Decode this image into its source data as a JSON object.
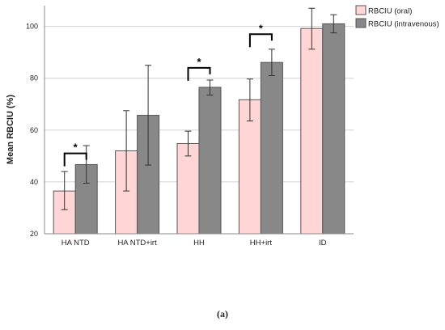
{
  "chart_data": {
    "type": "bar",
    "ylabel": "Mean RBCIU (%)",
    "ylim": [
      20,
      108
    ],
    "yticks": [
      20,
      40,
      60,
      80,
      100
    ],
    "grid": true,
    "legend_position": "top-right",
    "categories": [
      "HA NTD",
      "HA NTD+irt",
      "HH",
      "HH+irt",
      "ID"
    ],
    "series": [
      {
        "name": "RBCIU (oral)",
        "color": "#ffd5d5",
        "values": [
          36.5,
          52,
          54.8,
          71.7,
          99.2
        ],
        "err_low": [
          29.3,
          36.5,
          50,
          63.5,
          91.2
        ],
        "err_high": [
          44,
          67.5,
          59.6,
          79.7,
          107
        ]
      },
      {
        "name": "RBCIU (intravenous)",
        "color": "#888888",
        "values": [
          46.7,
          65.7,
          76.5,
          86.1,
          101
        ],
        "err_low": [
          39.5,
          46.5,
          73.5,
          81,
          97.5
        ],
        "err_high": [
          54,
          85,
          79.3,
          91.2,
          104.5
        ]
      }
    ],
    "significance": [
      {
        "category_index": 0,
        "label": "*",
        "bracket_y": 51
      },
      {
        "category_index": 2,
        "label": "*",
        "bracket_y": 84
      },
      {
        "category_index": 3,
        "label": "*",
        "bracket_y": 97
      }
    ]
  },
  "panel_label": "(a)"
}
